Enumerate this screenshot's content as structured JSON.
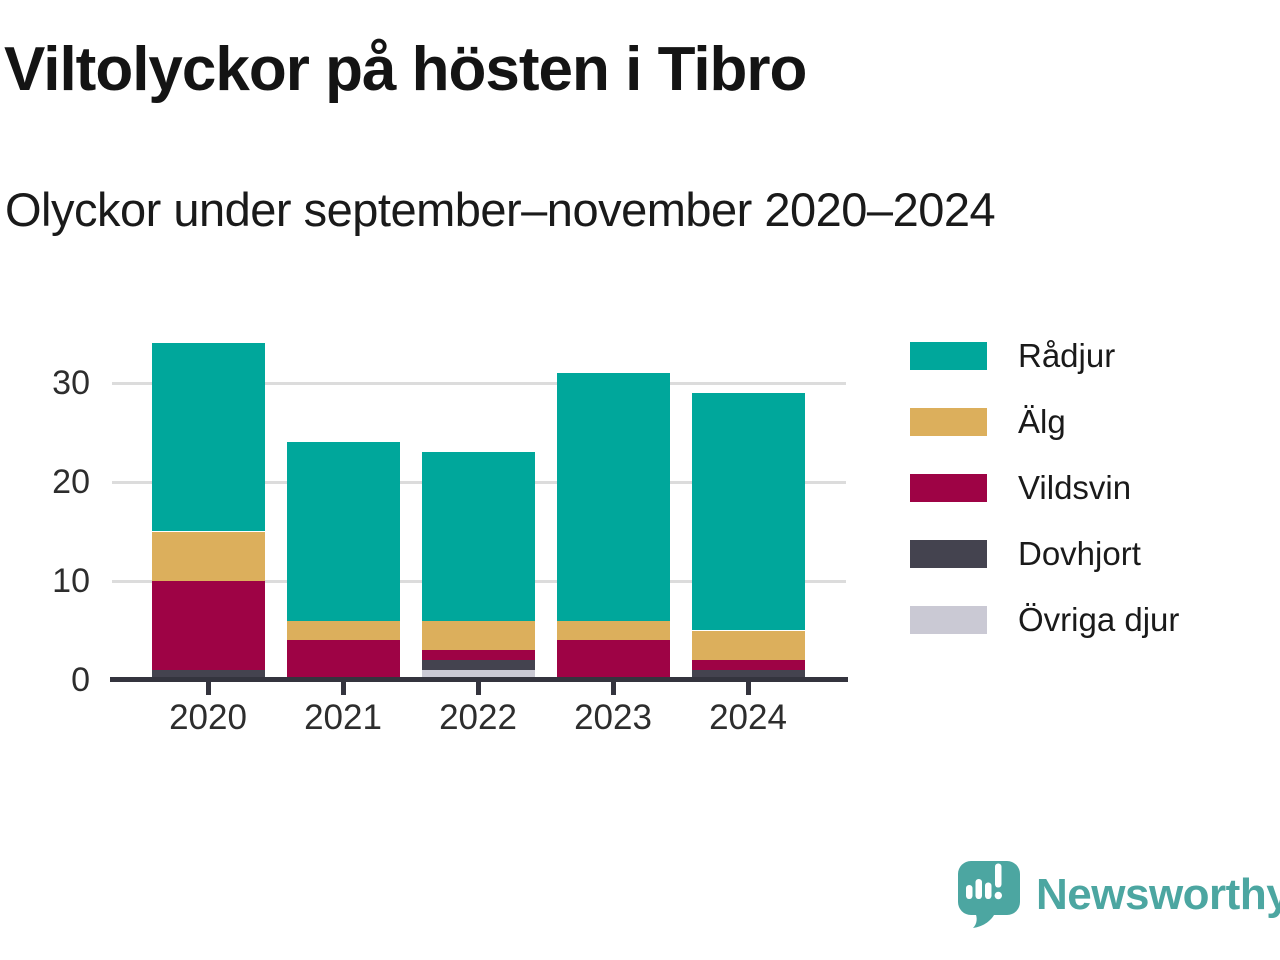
{
  "header": {
    "title": "Viltolyckor på hösten i Tibro",
    "subtitle": "Olyckor under september–november 2020–2024"
  },
  "chart_data": {
    "type": "bar",
    "stacked": true,
    "title": "Viltolyckor på hösten i Tibro",
    "subtitle": "Olyckor under september–november 2020–2024",
    "categories": [
      "2020",
      "2021",
      "2022",
      "2023",
      "2024"
    ],
    "series": [
      {
        "name": "Rådjur",
        "color": "#00a79b",
        "values": [
          19,
          18,
          17,
          25,
          24
        ]
      },
      {
        "name": "Älg",
        "color": "#dcaf5c",
        "values": [
          5,
          2,
          3,
          2,
          3
        ]
      },
      {
        "name": "Vildsvin",
        "color": "#9e0345",
        "values": [
          9,
          4,
          1,
          4,
          1
        ]
      },
      {
        "name": "Dovhjort",
        "color": "#44434f",
        "values": [
          1,
          0,
          1,
          0,
          1
        ]
      },
      {
        "name": "Övriga djur",
        "color": "#cac9d4",
        "values": [
          0,
          0,
          1,
          0,
          0
        ]
      }
    ],
    "stack_order_bottom_to_top": [
      "Övriga djur",
      "Dovhjort",
      "Vildsvin",
      "Älg",
      "Rådjur"
    ],
    "totals": [
      34,
      24,
      23,
      31,
      29
    ],
    "xlabel": "",
    "ylabel": "",
    "y_ticks": [
      0,
      10,
      20,
      30
    ],
    "ylim": [
      0,
      35
    ],
    "grid": "horizontal",
    "legend_position": "right",
    "gridline_color": "#dcdcdc",
    "axis_color": "#34343e"
  },
  "branding": {
    "name": "Newsworthy",
    "color": "#4ca6a1",
    "icon": "newsworthy-logo-icon"
  }
}
